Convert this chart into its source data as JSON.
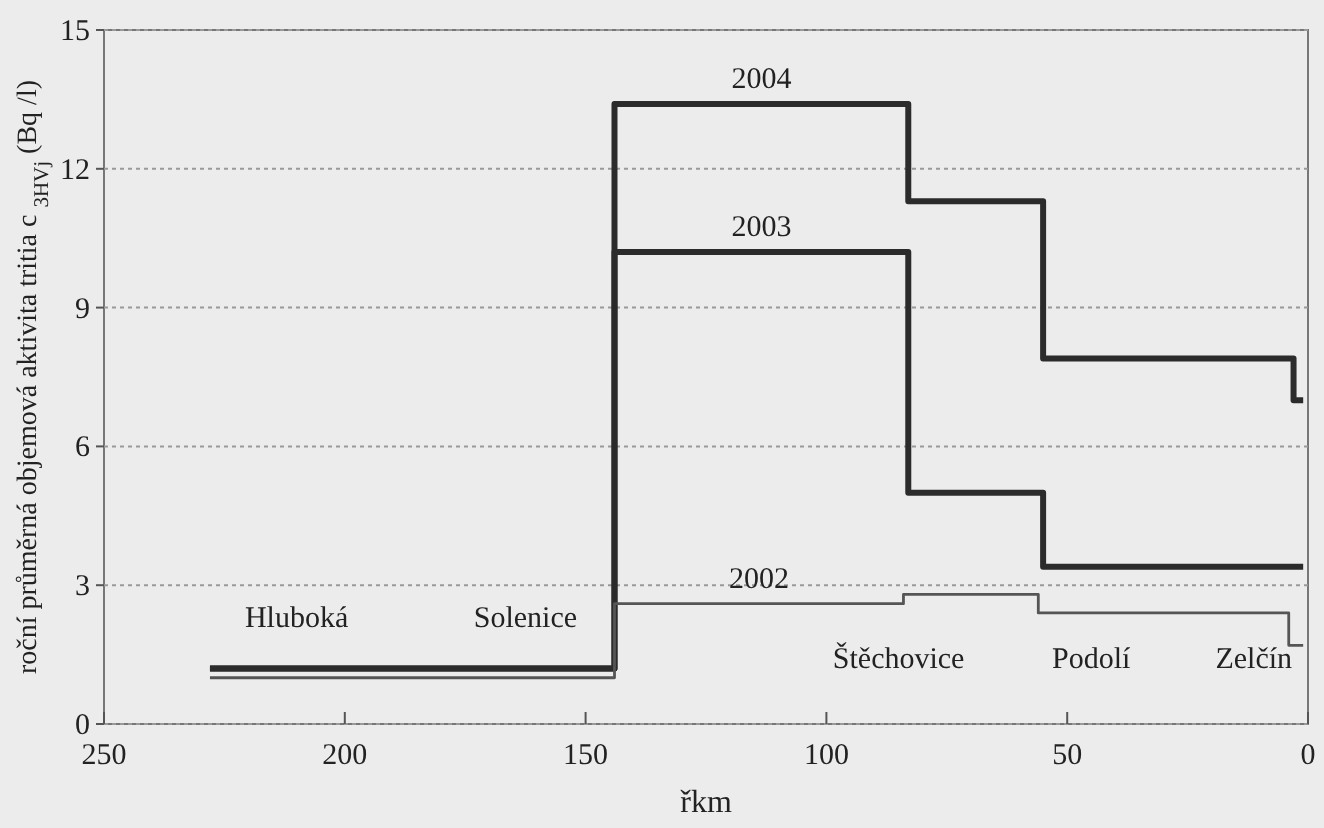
{
  "chart_data": {
    "type": "line",
    "xlabel": "řkm",
    "ylabel": "roční průměrná objemová aktivita tritia c $_{3HVj}$ (Bq /l)",
    "xlim": [
      250,
      0
    ],
    "xticks": [
      250,
      200,
      150,
      100,
      50,
      0
    ],
    "ylim": [
      0,
      15
    ],
    "yticks": [
      0,
      3,
      6,
      9,
      12,
      15
    ],
    "grid": "y",
    "line_style": "solid",
    "marker": "none",
    "series": [
      {
        "name": "2004",
        "color": "#2b2b2b",
        "x": [
          228,
          144,
          144,
          83,
          83,
          55,
          55,
          3,
          3,
          1
        ],
        "values": [
          1.2,
          1.2,
          13.4,
          13.4,
          11.3,
          11.3,
          7.9,
          7.9,
          7.0,
          7.0
        ]
      },
      {
        "name": "2003",
        "color": "#2b2b2b",
        "x": [
          228,
          144,
          144,
          83,
          83,
          55,
          55,
          1
        ],
        "values": [
          1.2,
          1.2,
          10.2,
          10.2,
          5.0,
          5.0,
          3.4,
          3.4
        ]
      },
      {
        "name": "2002",
        "color": "#555555",
        "x": [
          228,
          144,
          144,
          84,
          84,
          56,
          56,
          4,
          4,
          1
        ],
        "values": [
          1.0,
          1.0,
          2.6,
          2.6,
          2.8,
          2.8,
          2.4,
          2.4,
          1.7,
          1.7
        ]
      }
    ],
    "annotations": [
      "Hluboká",
      "Solenice",
      "Štěchovice",
      "Podolí",
      "Zelčín"
    ]
  }
}
